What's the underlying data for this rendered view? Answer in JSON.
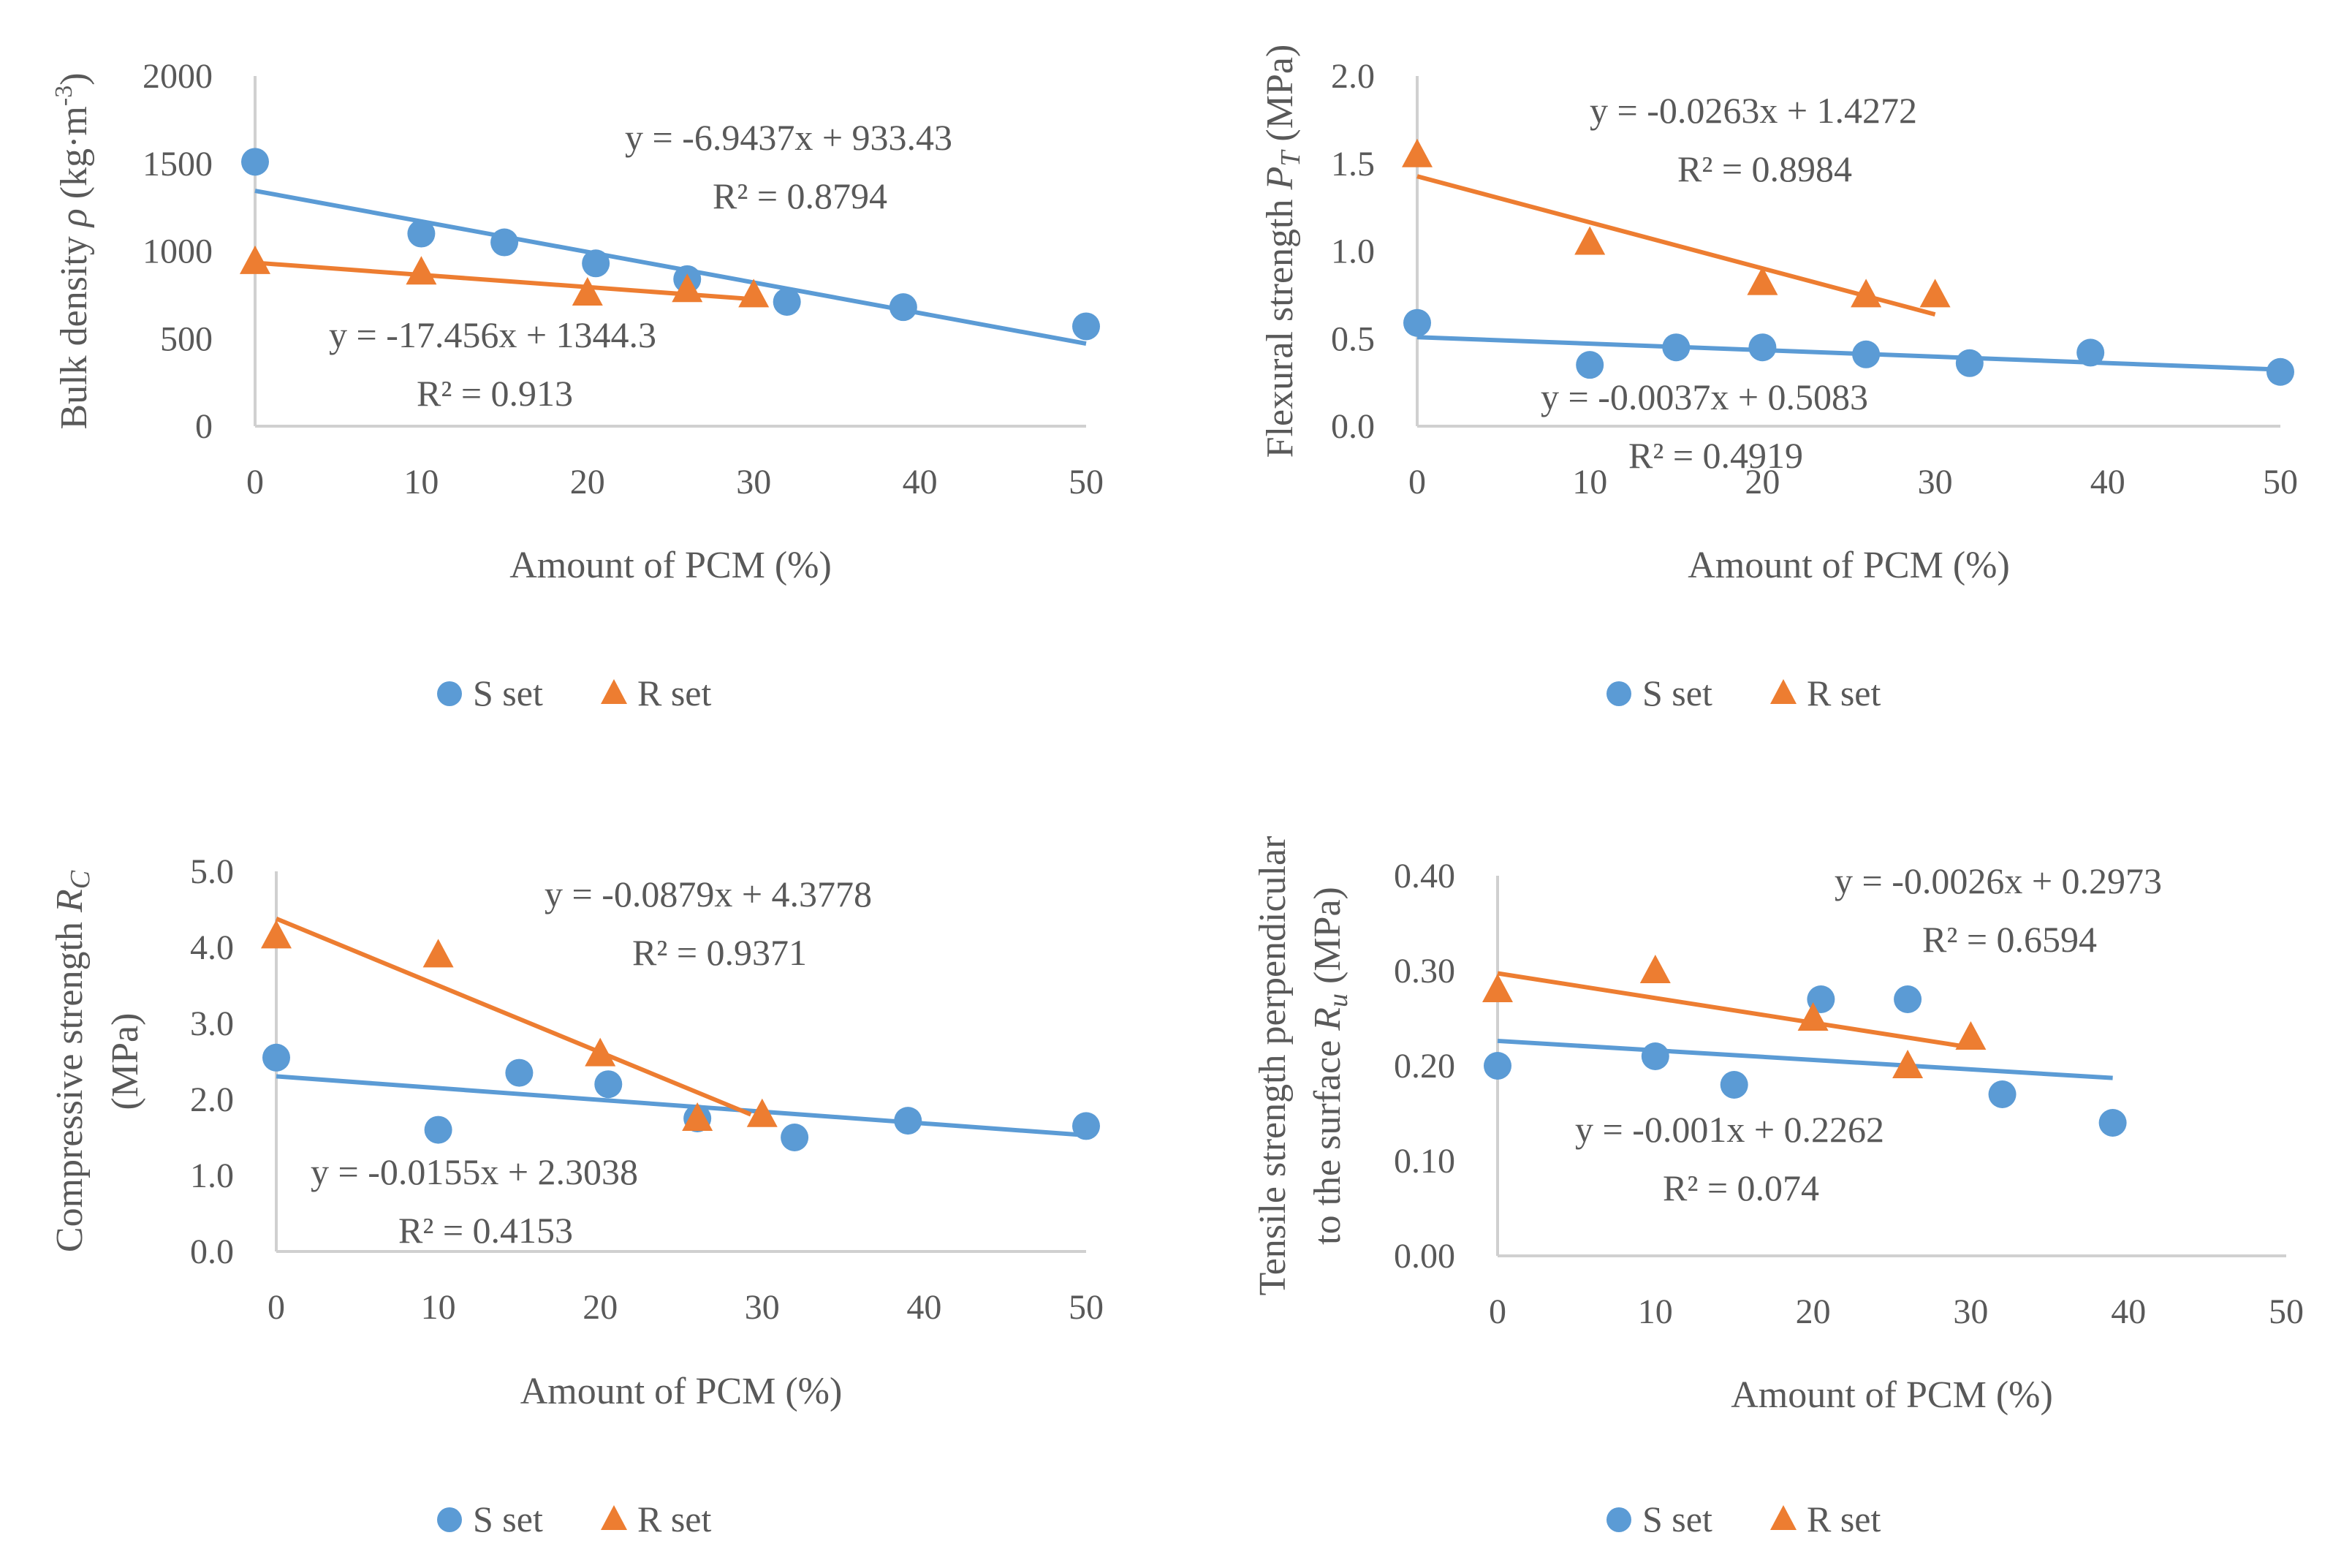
{
  "colors": {
    "s_set": "#5B9BD5",
    "r_set": "#ED7D31",
    "axis": "#d0d0d0",
    "text": "#595959"
  },
  "legend": {
    "s_label": "S set",
    "r_label": "R set"
  },
  "chart_data": [
    {
      "id": "bulk-density",
      "type": "scatter",
      "xlabel": "Amount of PCM (%)",
      "ylabel": "Bulk density ρ (kg·m⁻³)",
      "xlim": [
        0,
        50
      ],
      "ylim": [
        0,
        2000
      ],
      "xticks": [
        0,
        10,
        20,
        30,
        40,
        50
      ],
      "yticks": [
        0,
        500,
        1000,
        1500,
        2000
      ],
      "ytick_labels": [
        "0",
        "500",
        "1000",
        "1500",
        "2000"
      ],
      "series": [
        {
          "name": "S set",
          "marker": "circle",
          "x": [
            0,
            10,
            15,
            20.5,
            26,
            32,
            39,
            50
          ],
          "y": [
            1510,
            1100,
            1050,
            930,
            840,
            710,
            680,
            570
          ],
          "trend": {
            "slope": -17.456,
            "intercept": 1344.3,
            "x_range": [
              0,
              50
            ]
          },
          "equation": "y = -17.456x + 1344.3",
          "r2": "R² = 0.913"
        },
        {
          "name": "R set",
          "marker": "triangle",
          "x": [
            0,
            10,
            20,
            26,
            30
          ],
          "y": [
            940,
            880,
            760,
            780,
            750
          ],
          "trend": {
            "slope": -6.9437,
            "intercept": 933.43,
            "x_range": [
              0,
              30
            ]
          },
          "equation": "y = -6.9437x + 933.43",
          "r2": "R² = 0.8794"
        }
      ]
    },
    {
      "id": "flexural-strength",
      "type": "scatter",
      "xlabel": "Amount of PCM (%)",
      "ylabel": "Flexural strength P_T (MPa)",
      "xlim": [
        0,
        50
      ],
      "ylim": [
        0,
        2
      ],
      "xticks": [
        0,
        10,
        20,
        30,
        40,
        50
      ],
      "yticks": [
        0,
        0.5,
        1,
        1.5,
        2
      ],
      "ytick_labels": [
        "0.0",
        "0.5",
        "1.0",
        "1.5",
        "2.0"
      ],
      "series": [
        {
          "name": "S set",
          "marker": "circle",
          "x": [
            0,
            10,
            15,
            20,
            26,
            32,
            39,
            50
          ],
          "y": [
            0.59,
            0.35,
            0.45,
            0.45,
            0.41,
            0.36,
            0.42,
            0.31
          ],
          "trend": {
            "slope": -0.0037,
            "intercept": 0.5083,
            "x_range": [
              0,
              50
            ]
          },
          "equation": "y = -0.0037x + 0.5083",
          "r2": "R² = 0.4919"
        },
        {
          "name": "R set",
          "marker": "triangle",
          "x": [
            0,
            10,
            20,
            26,
            30
          ],
          "y": [
            1.55,
            1.05,
            0.82,
            0.75,
            0.75
          ],
          "trend": {
            "slope": -0.0263,
            "intercept": 1.4272,
            "x_range": [
              0,
              30
            ]
          },
          "equation": "y = -0.0263x + 1.4272",
          "r2": "R² = 0.8984"
        }
      ]
    },
    {
      "id": "compressive-strength",
      "type": "scatter",
      "xlabel": "Amount of PCM (%)",
      "ylabel": "Compressive strength R_C",
      "ylabel2": "(MPa)",
      "xlim": [
        0,
        50
      ],
      "ylim": [
        0,
        5
      ],
      "xticks": [
        0,
        10,
        20,
        30,
        40,
        50
      ],
      "yticks": [
        0,
        1,
        2,
        3,
        4,
        5
      ],
      "ytick_labels": [
        "0.0",
        "1.0",
        "2.0",
        "3.0",
        "4.0",
        "5.0"
      ],
      "series": [
        {
          "name": "S set",
          "marker": "circle",
          "x": [
            0,
            10,
            15,
            20.5,
            26,
            32,
            39,
            50
          ],
          "y": [
            2.55,
            1.6,
            2.35,
            2.2,
            1.75,
            1.5,
            1.72,
            1.65
          ],
          "trend": {
            "slope": -0.0155,
            "intercept": 2.3038,
            "x_range": [
              0,
              50
            ]
          },
          "equation": "y = -0.0155x + 2.3038",
          "r2": "R² = 0.4153"
        },
        {
          "name": "R set",
          "marker": "triangle",
          "x": [
            0,
            10,
            20,
            26,
            30
          ],
          "y": [
            4.15,
            3.9,
            2.6,
            1.75,
            1.8
          ],
          "trend": {
            "slope": -0.0879,
            "intercept": 4.3778,
            "x_range": [
              0,
              29.3
            ]
          },
          "equation": "y = -0.0879x + 4.3778",
          "r2": "R² = 0.9371"
        }
      ]
    },
    {
      "id": "tensile-strength",
      "type": "scatter",
      "xlabel": "Amount of PCM (%)",
      "ylabel": "Tensile strength perpendicular",
      "ylabel2": "to the surface R_u (MPa)",
      "xlim": [
        0,
        50
      ],
      "ylim": [
        0,
        0.4
      ],
      "xticks": [
        0,
        10,
        20,
        30,
        40,
        50
      ],
      "yticks": [
        0,
        0.1,
        0.2,
        0.3,
        0.4
      ],
      "ytick_labels": [
        "0.00",
        "0.10",
        "0.20",
        "0.30",
        "0.40"
      ],
      "series": [
        {
          "name": "S set",
          "marker": "circle",
          "x": [
            0,
            10,
            15,
            20.5,
            26,
            32,
            39
          ],
          "y": [
            0.2,
            0.21,
            0.18,
            0.27,
            0.27,
            0.17,
            0.14
          ],
          "trend": {
            "slope": -0.001,
            "intercept": 0.2262,
            "x_range": [
              0,
              39
            ]
          },
          "equation": "y = -0.001x + 0.2262",
          "r2": "R² = 0.074"
        },
        {
          "name": "R set",
          "marker": "triangle",
          "x": [
            0,
            10,
            20,
            26,
            30
          ],
          "y": [
            0.28,
            0.3,
            0.25,
            0.2,
            0.23
          ],
          "trend": {
            "slope": -0.0026,
            "intercept": 0.2973,
            "x_range": [
              0,
              30
            ]
          },
          "equation": "y = -0.0026x + 0.2973",
          "r2": "R² = 0.6594"
        }
      ]
    }
  ]
}
